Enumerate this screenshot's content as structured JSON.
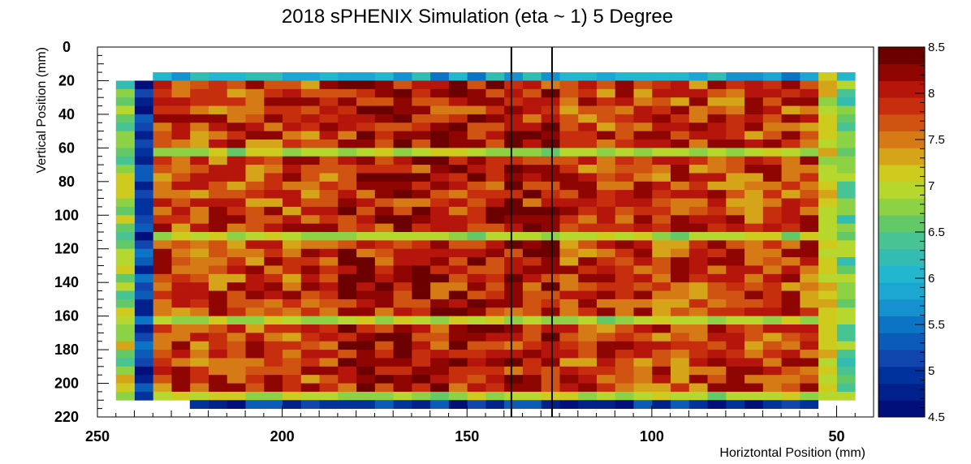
{
  "chart_data": {
    "type": "heatmap",
    "title": "2018 sPHENIX Simulation (eta ~ 1) 5 Degree",
    "xlabel": "Horiztontal Position (mm)",
    "ylabel": "Vertical Position (mm)",
    "xlim": [
      250,
      40
    ],
    "ylim": [
      0,
      220
    ],
    "x_reversed": true,
    "y_reversed": true,
    "x_ticks": [
      250,
      200,
      150,
      100,
      50
    ],
    "y_ticks": [
      0,
      20,
      40,
      60,
      80,
      100,
      120,
      140,
      160,
      180,
      200,
      220
    ],
    "bin_width_mm": 5,
    "bin_height_mm": 5,
    "grid": false,
    "colorbar": {
      "range": [
        4.5,
        8.5
      ],
      "ticks": [
        "4.5",
        "5",
        "5.5",
        "6",
        "6.5",
        "7",
        "7.5",
        "8",
        "8.5"
      ],
      "levels": 20,
      "palette": [
        "#000f7a",
        "#00208c",
        "#00329e",
        "#1046ad",
        "#0b5cb8",
        "#0b74c4",
        "#1591cf",
        "#1ba7d2",
        "#22b6cf",
        "#33bcb2",
        "#47c394",
        "#63c966",
        "#8cd244",
        "#b5d72e",
        "#cfcb1e",
        "#d6a419",
        "#d67a16",
        "#d05312",
        "#c72e0d",
        "#b5150a",
        "#8e0502",
        "#6c0000"
      ]
    },
    "vertical_lines_mm": [
      138,
      127
    ],
    "column_profile": {
      "left_columns_mm": [
        235,
        240
      ],
      "left_columns_values": [
        5.0,
        6.6
      ],
      "right_columns_mm": [
        45,
        50
      ],
      "right_columns_values": [
        6.6,
        7.1
      ],
      "inner_x_range_mm": [
        55,
        230
      ],
      "inner_y_range_mm": [
        15,
        210
      ],
      "gap_rows_mm": [
        [
          60,
          65
        ],
        [
          110,
          115
        ],
        [
          160,
          165
        ],
        [
          205,
          210
        ]
      ],
      "gap_value": 6.9,
      "bottom_strip_y_mm": [
        210,
        215
      ],
      "bottom_strip_value": 5.0,
      "top_strip_y_mm": [
        15,
        20
      ],
      "top_strip_value": 5.9,
      "inner_value_range": [
        7.3,
        8.3
      ]
    }
  }
}
